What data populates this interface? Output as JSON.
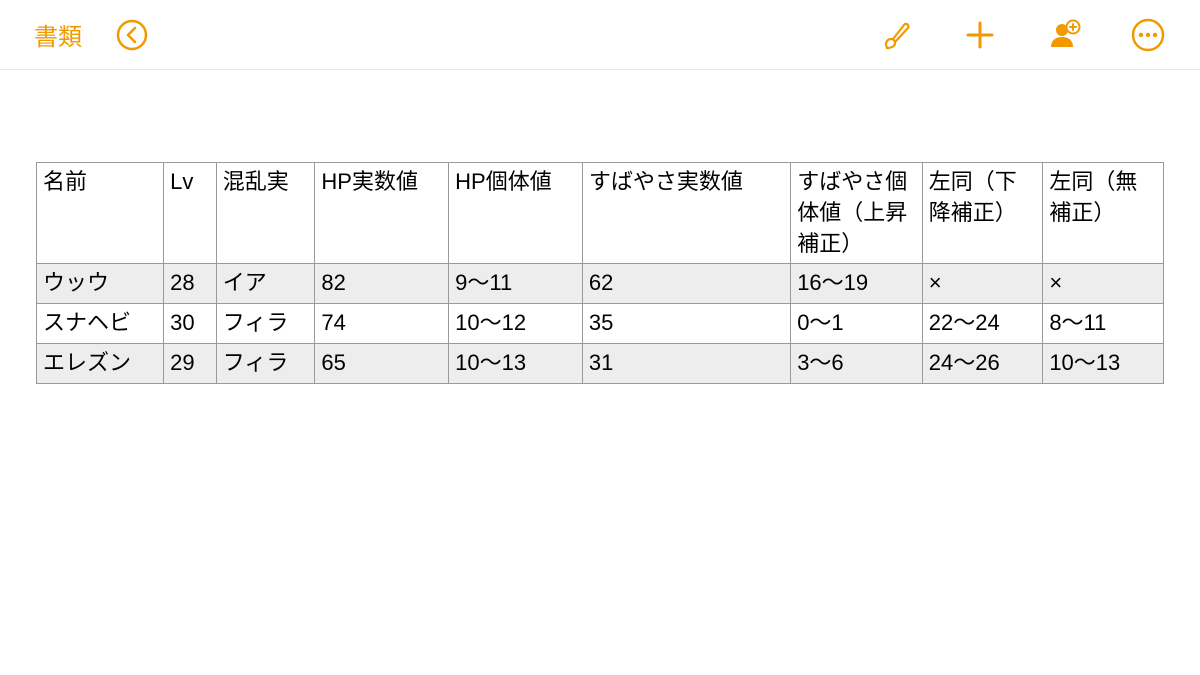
{
  "toolbar": {
    "back_label": "書類",
    "accent_color": "#f09a00"
  },
  "table": {
    "columns": [
      {
        "label": "名前",
        "width": 116,
        "align": "left"
      },
      {
        "label": "Lv",
        "width": 48,
        "align": "right"
      },
      {
        "label": "混乱実",
        "width": 90,
        "align": "left"
      },
      {
        "label": "HP実数値",
        "width": 122,
        "align": "right"
      },
      {
        "label": "HP個体値",
        "width": 122,
        "align": "left"
      },
      {
        "label": "すばやさ実数値",
        "width": 190,
        "align": "right"
      },
      {
        "label": "すばやさ個体値（上昇補正）",
        "width": 120,
        "align": "left"
      },
      {
        "label": "左同（下降補正）",
        "width": 110,
        "align": "left"
      },
      {
        "label": "左同（無補正）",
        "width": 110,
        "align": "left"
      }
    ],
    "rows": [
      [
        "ウッウ",
        "28",
        "イア",
        "82",
        "9〜11",
        "62",
        "16〜19",
        "×",
        "×"
      ],
      [
        "スナヘビ",
        "30",
        "フィラ",
        "74",
        "10〜12",
        "35",
        "0〜1",
        "22〜24",
        "8〜11"
      ],
      [
        "エレズン",
        "29",
        "フィラ",
        "65",
        "10〜13",
        "31",
        "3〜6",
        "24〜26",
        "10〜13"
      ]
    ],
    "border_color": "#9a9a9a",
    "stripe_bg": "#ededed",
    "background_color": "#ffffff",
    "cell_fontsize": 22
  }
}
